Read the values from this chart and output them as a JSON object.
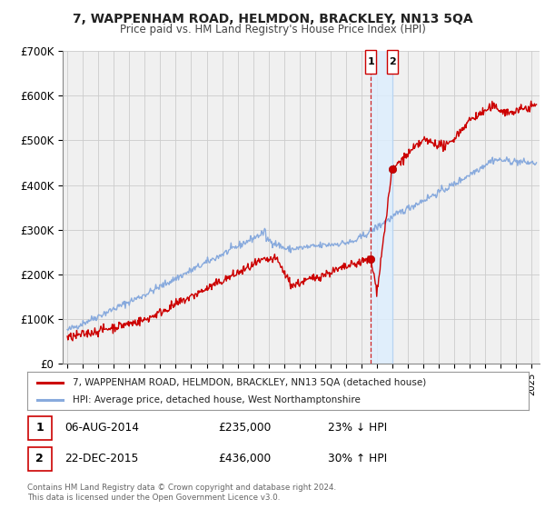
{
  "title1": "7, WAPPENHAM ROAD, HELMDON, BRACKLEY, NN13 5QA",
  "title2": "Price paid vs. HM Land Registry's House Price Index (HPI)",
  "ylim": [
    0,
    700000
  ],
  "yticks": [
    0,
    100000,
    200000,
    300000,
    400000,
    500000,
    600000,
    700000
  ],
  "ytick_labels": [
    "£0",
    "£100K",
    "£200K",
    "£300K",
    "£400K",
    "£500K",
    "£600K",
    "£700K"
  ],
  "xlim_start": 1994.7,
  "xlim_end": 2025.5,
  "grid_color": "#cccccc",
  "background_color": "#ffffff",
  "plot_background": "#f0f0f0",
  "red_line_color": "#cc0000",
  "blue_line_color": "#88aadd",
  "marker_color": "#cc0000",
  "vline1_x": 2014.595,
  "vline2_x": 2015.978,
  "vline_color": "#cc0000",
  "vline2_color": "#aaccee",
  "shade_color": "#ddeeff",
  "marker1_x": 2014.595,
  "marker1_y": 235000,
  "marker2_x": 2015.978,
  "marker2_y": 436000,
  "legend_label1": "7, WAPPENHAM ROAD, HELMDON, BRACKLEY, NN13 5QA (detached house)",
  "legend_label2": "HPI: Average price, detached house, West Northamptonshire",
  "table_row1": [
    "1",
    "06-AUG-2014",
    "£235,000",
    "23% ↓ HPI"
  ],
  "table_row2": [
    "2",
    "22-DEC-2015",
    "£436,000",
    "30% ↑ HPI"
  ],
  "footer1": "Contains HM Land Registry data © Crown copyright and database right 2024.",
  "footer2": "This data is licensed under the Open Government Licence v3.0."
}
